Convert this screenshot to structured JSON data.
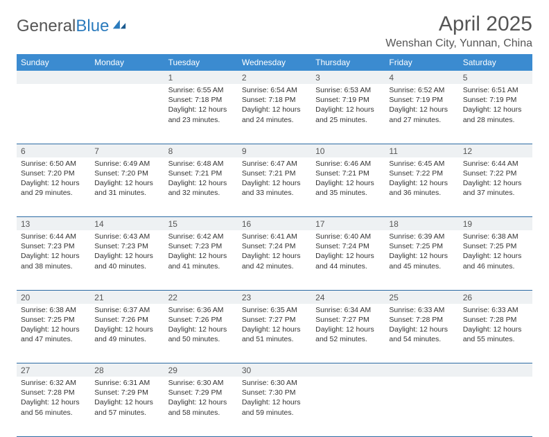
{
  "logo": {
    "text1": "General",
    "text2": "Blue"
  },
  "title": "April 2025",
  "location": "Wenshan City, Yunnan, China",
  "colors": {
    "header_bg": "#3b8bd0",
    "header_text": "#ffffff",
    "daynum_bg": "#eef1f3",
    "border": "#2b6aa3",
    "logo_gray": "#555555",
    "logo_blue": "#2b7bbd"
  },
  "daysOfWeek": [
    "Sunday",
    "Monday",
    "Tuesday",
    "Wednesday",
    "Thursday",
    "Friday",
    "Saturday"
  ],
  "weeks": [
    [
      null,
      null,
      {
        "n": "1",
        "sr": "6:55 AM",
        "ss": "7:18 PM",
        "dl": "12 hours and 23 minutes."
      },
      {
        "n": "2",
        "sr": "6:54 AM",
        "ss": "7:18 PM",
        "dl": "12 hours and 24 minutes."
      },
      {
        "n": "3",
        "sr": "6:53 AM",
        "ss": "7:19 PM",
        "dl": "12 hours and 25 minutes."
      },
      {
        "n": "4",
        "sr": "6:52 AM",
        "ss": "7:19 PM",
        "dl": "12 hours and 27 minutes."
      },
      {
        "n": "5",
        "sr": "6:51 AM",
        "ss": "7:19 PM",
        "dl": "12 hours and 28 minutes."
      }
    ],
    [
      {
        "n": "6",
        "sr": "6:50 AM",
        "ss": "7:20 PM",
        "dl": "12 hours and 29 minutes."
      },
      {
        "n": "7",
        "sr": "6:49 AM",
        "ss": "7:20 PM",
        "dl": "12 hours and 31 minutes."
      },
      {
        "n": "8",
        "sr": "6:48 AM",
        "ss": "7:21 PM",
        "dl": "12 hours and 32 minutes."
      },
      {
        "n": "9",
        "sr": "6:47 AM",
        "ss": "7:21 PM",
        "dl": "12 hours and 33 minutes."
      },
      {
        "n": "10",
        "sr": "6:46 AM",
        "ss": "7:21 PM",
        "dl": "12 hours and 35 minutes."
      },
      {
        "n": "11",
        "sr": "6:45 AM",
        "ss": "7:22 PM",
        "dl": "12 hours and 36 minutes."
      },
      {
        "n": "12",
        "sr": "6:44 AM",
        "ss": "7:22 PM",
        "dl": "12 hours and 37 minutes."
      }
    ],
    [
      {
        "n": "13",
        "sr": "6:44 AM",
        "ss": "7:23 PM",
        "dl": "12 hours and 38 minutes."
      },
      {
        "n": "14",
        "sr": "6:43 AM",
        "ss": "7:23 PM",
        "dl": "12 hours and 40 minutes."
      },
      {
        "n": "15",
        "sr": "6:42 AM",
        "ss": "7:23 PM",
        "dl": "12 hours and 41 minutes."
      },
      {
        "n": "16",
        "sr": "6:41 AM",
        "ss": "7:24 PM",
        "dl": "12 hours and 42 minutes."
      },
      {
        "n": "17",
        "sr": "6:40 AM",
        "ss": "7:24 PM",
        "dl": "12 hours and 44 minutes."
      },
      {
        "n": "18",
        "sr": "6:39 AM",
        "ss": "7:25 PM",
        "dl": "12 hours and 45 minutes."
      },
      {
        "n": "19",
        "sr": "6:38 AM",
        "ss": "7:25 PM",
        "dl": "12 hours and 46 minutes."
      }
    ],
    [
      {
        "n": "20",
        "sr": "6:38 AM",
        "ss": "7:25 PM",
        "dl": "12 hours and 47 minutes."
      },
      {
        "n": "21",
        "sr": "6:37 AM",
        "ss": "7:26 PM",
        "dl": "12 hours and 49 minutes."
      },
      {
        "n": "22",
        "sr": "6:36 AM",
        "ss": "7:26 PM",
        "dl": "12 hours and 50 minutes."
      },
      {
        "n": "23",
        "sr": "6:35 AM",
        "ss": "7:27 PM",
        "dl": "12 hours and 51 minutes."
      },
      {
        "n": "24",
        "sr": "6:34 AM",
        "ss": "7:27 PM",
        "dl": "12 hours and 52 minutes."
      },
      {
        "n": "25",
        "sr": "6:33 AM",
        "ss": "7:28 PM",
        "dl": "12 hours and 54 minutes."
      },
      {
        "n": "26",
        "sr": "6:33 AM",
        "ss": "7:28 PM",
        "dl": "12 hours and 55 minutes."
      }
    ],
    [
      {
        "n": "27",
        "sr": "6:32 AM",
        "ss": "7:28 PM",
        "dl": "12 hours and 56 minutes."
      },
      {
        "n": "28",
        "sr": "6:31 AM",
        "ss": "7:29 PM",
        "dl": "12 hours and 57 minutes."
      },
      {
        "n": "29",
        "sr": "6:30 AM",
        "ss": "7:29 PM",
        "dl": "12 hours and 58 minutes."
      },
      {
        "n": "30",
        "sr": "6:30 AM",
        "ss": "7:30 PM",
        "dl": "12 hours and 59 minutes."
      },
      null,
      null,
      null
    ]
  ],
  "labels": {
    "sunrise": "Sunrise:",
    "sunset": "Sunset:",
    "daylight": "Daylight:"
  }
}
